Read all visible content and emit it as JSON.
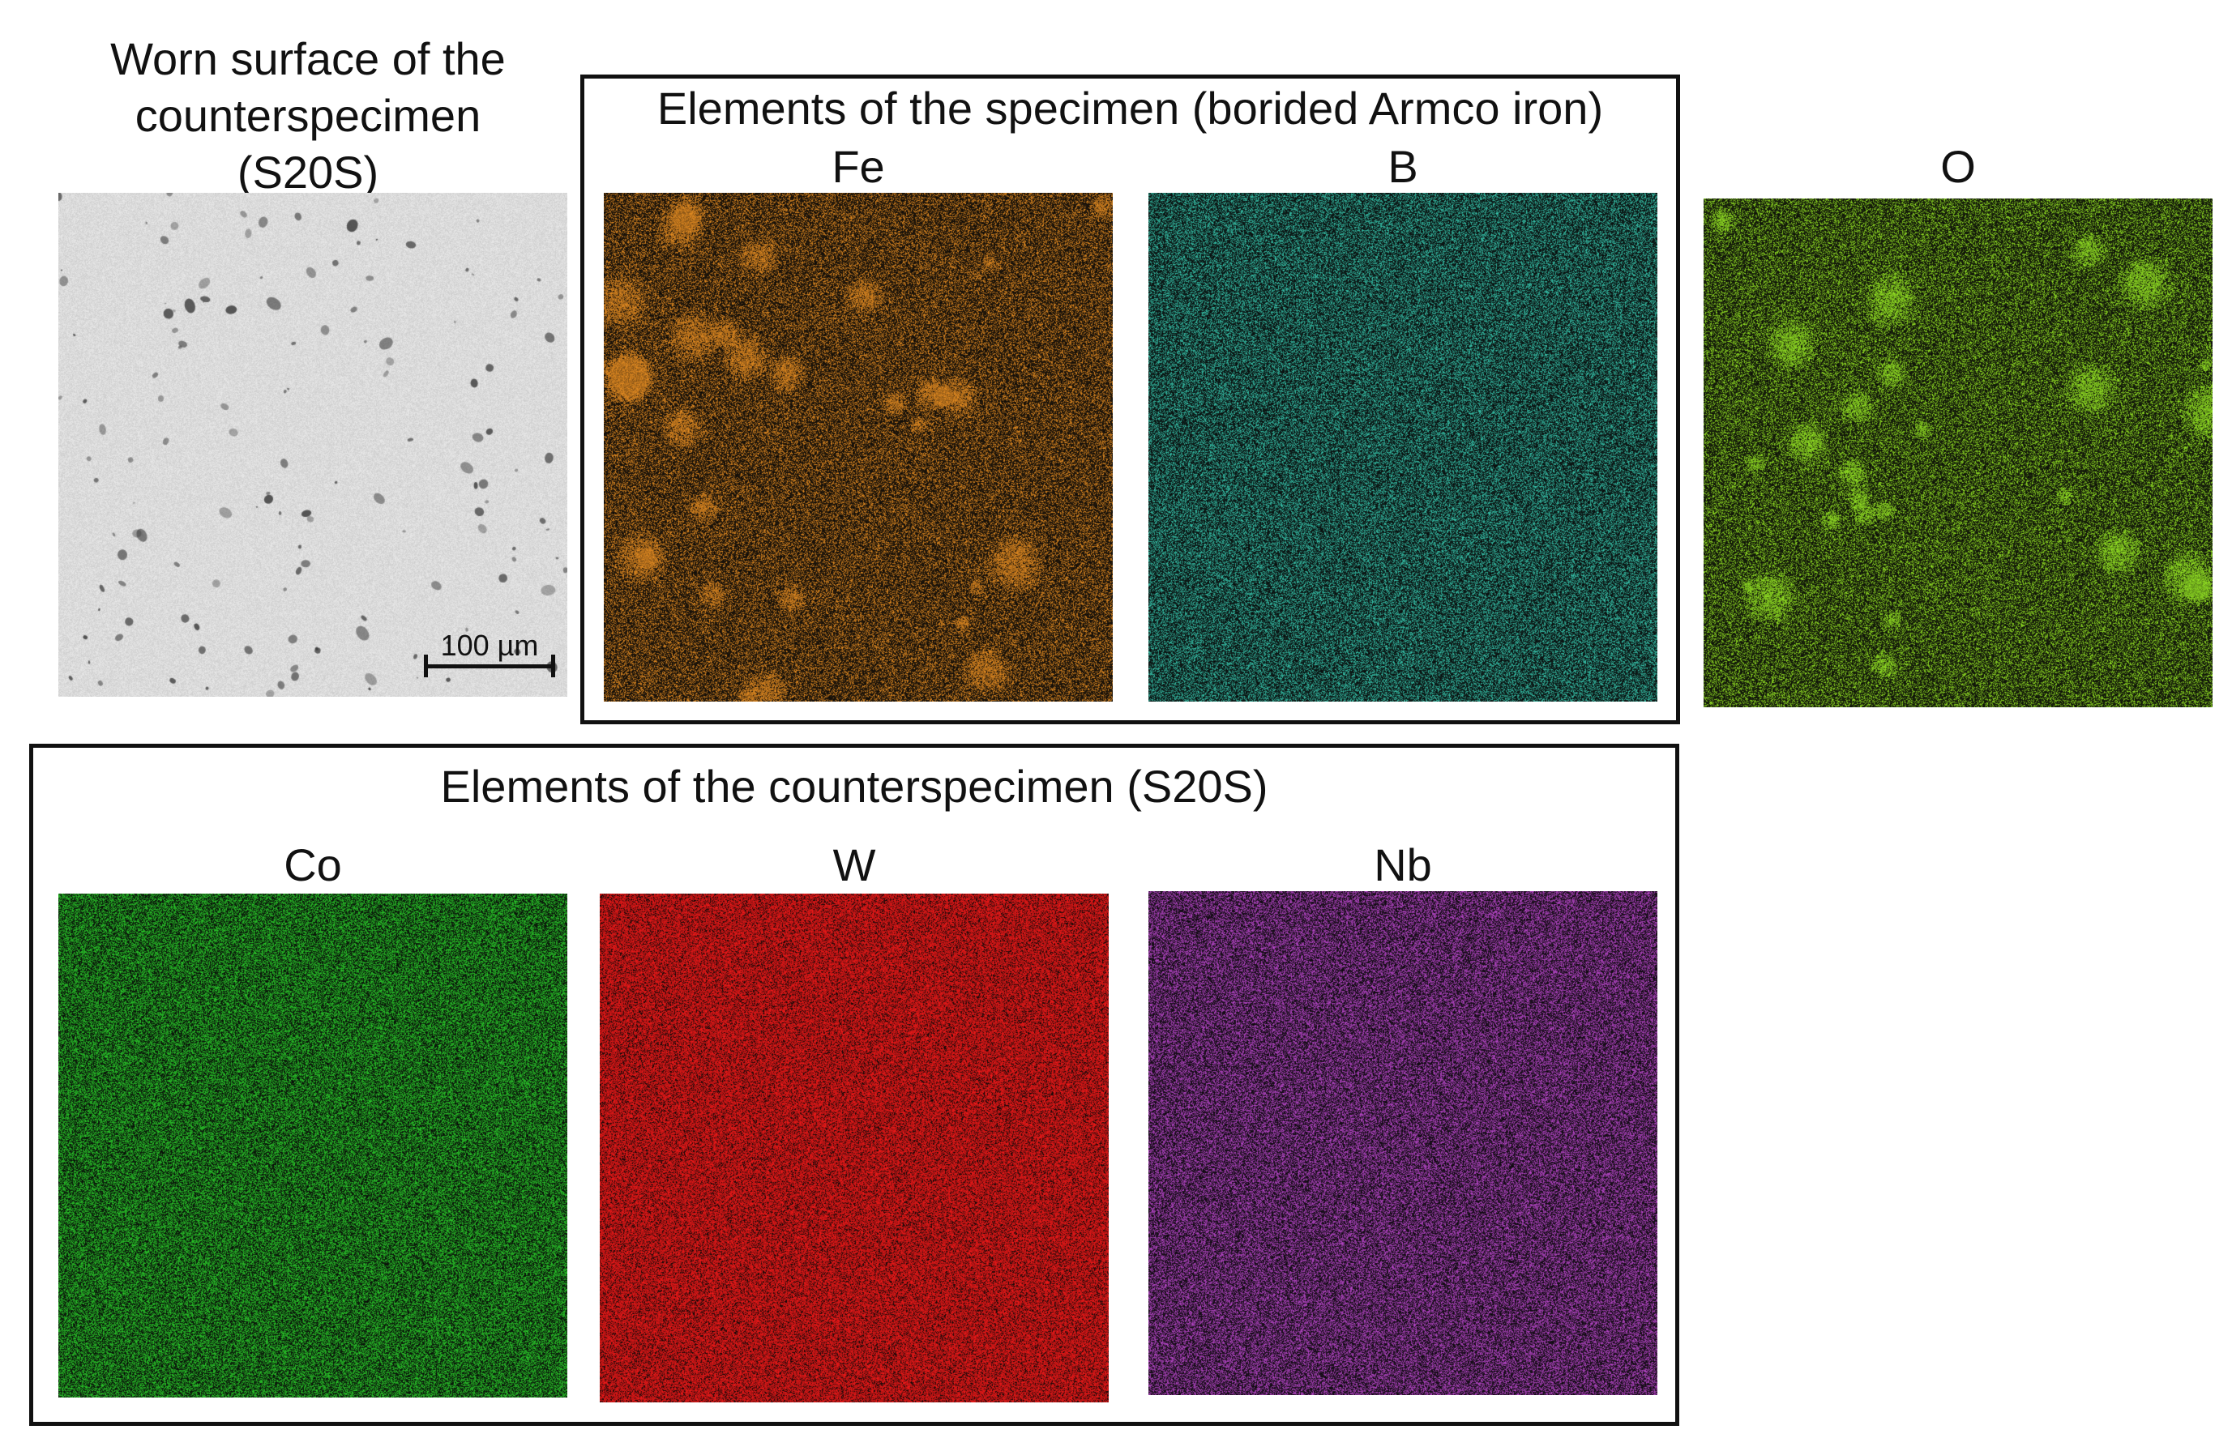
{
  "left_panel": {
    "title_lines": [
      "Worn surface of the",
      "counterspecimen",
      "(S20S)"
    ],
    "scale_bar": "100 µm"
  },
  "specimen_box": {
    "title": "Elements of the specimen (borided Armco iron)",
    "maps": [
      {
        "label": "Fe",
        "color": "#e0861a"
      },
      {
        "label": "B",
        "color": "#2fbfa6"
      }
    ]
  },
  "oxygen_map": {
    "label": "O",
    "color": "#8fe01c"
  },
  "counterspecimen_box": {
    "title": "Elements of the counterspecimen (S20S)",
    "maps": [
      {
        "label": "Co",
        "color": "#22c422"
      },
      {
        "label": "W",
        "color": "#ee1111"
      },
      {
        "label": "Nb",
        "color": "#b23fc4"
      }
    ]
  }
}
